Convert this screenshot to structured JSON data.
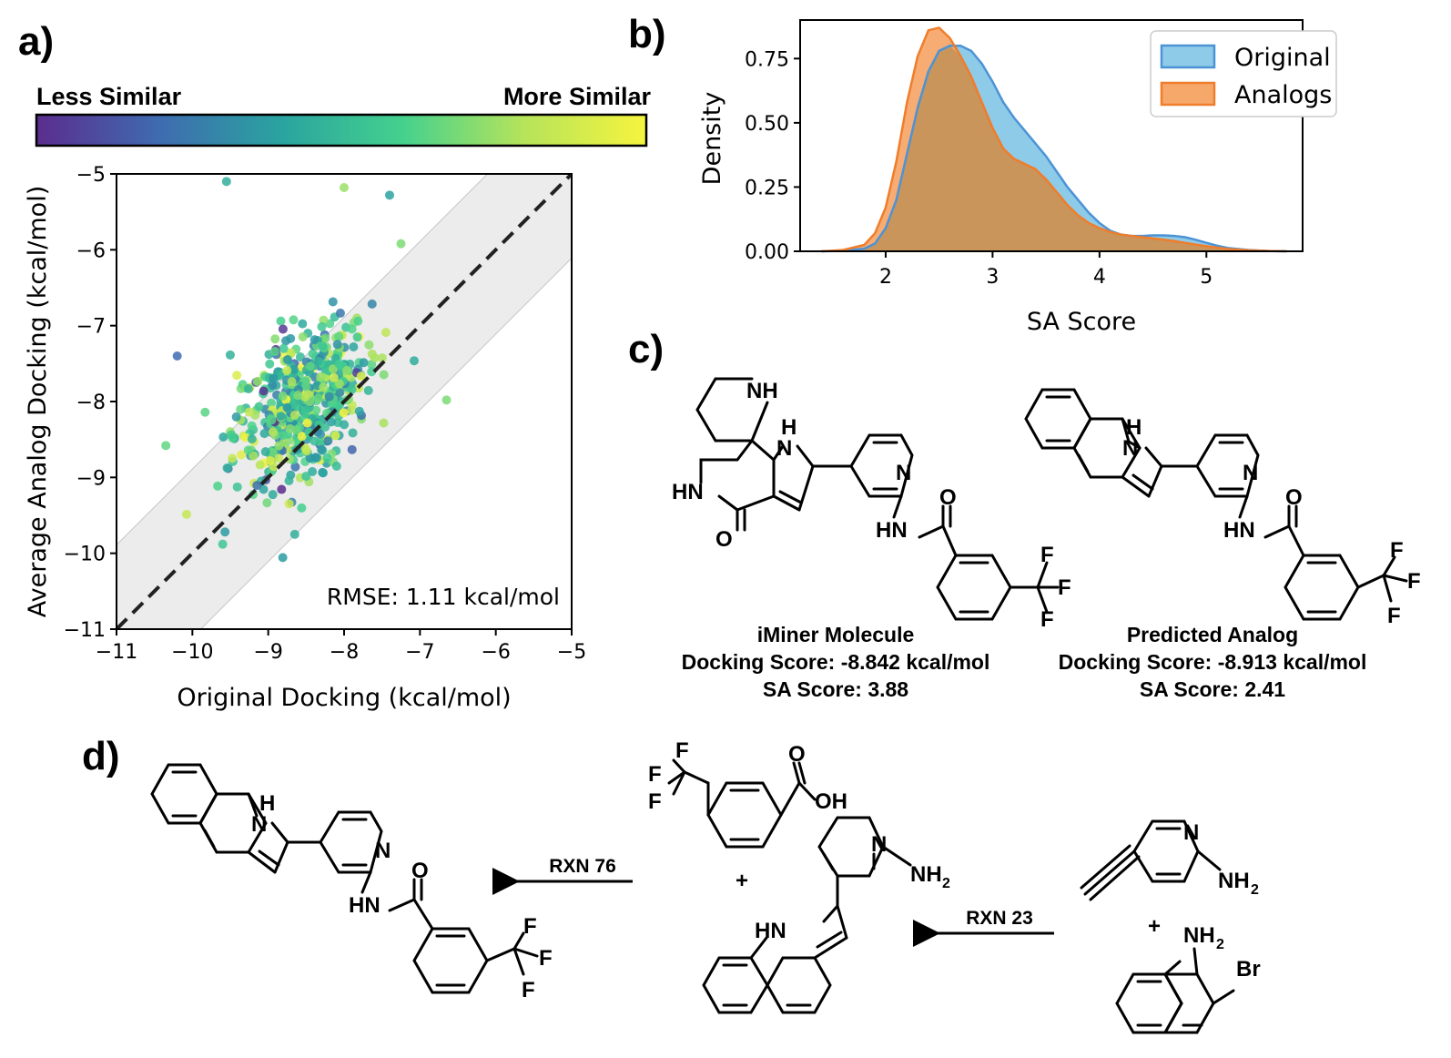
{
  "panel_labels": {
    "a": "a)",
    "b": "b)",
    "c": "c)",
    "d": "d)"
  },
  "colorbar": {
    "left_label": "Less Similar",
    "right_label": "More Similar",
    "colormap": [
      "#5b2d8e",
      "#3f6bb0",
      "#2aa3a0",
      "#44d18e",
      "#b6e45a",
      "#f6f43e"
    ]
  },
  "chart_data": [
    {
      "type": "scatter",
      "xlabel": "Original Docking (kcal/mol)",
      "ylabel": "Average Analog Docking (kcal/mol)",
      "xlim": [
        -11,
        -5
      ],
      "ylim": [
        -11,
        -5
      ],
      "xticks": [
        "−11",
        "−10",
        "−9",
        "−8",
        "−7",
        "−6",
        "−5"
      ],
      "yticks": [
        "−5",
        "−6",
        "−7",
        "−8",
        "−9",
        "−10",
        "−11"
      ],
      "annotation": "RMSE: 1.11 kcal/mol",
      "identity_line": true,
      "band_half_width": 1.11,
      "point_count": 520,
      "center": [
        -8.55,
        -8.0
      ],
      "notable_points": [
        {
          "x": -9.55,
          "y": -5.1
        },
        {
          "x": -8.0,
          "y": -5.18
        },
        {
          "x": -7.4,
          "y": -5.28
        },
        {
          "x": -7.25,
          "y": -5.92
        },
        {
          "x": -10.2,
          "y": -7.4
        },
        {
          "x": -6.65,
          "y": -7.98
        },
        {
          "x": -10.35,
          "y": -8.58
        },
        {
          "x": -9.6,
          "y": -9.88
        },
        {
          "x": -8.65,
          "y": -9.75
        }
      ],
      "grid": false
    },
    {
      "type": "area",
      "xlabel": "SA Score",
      "ylabel": "Density",
      "xlim": [
        1.2,
        5.9
      ],
      "ylim": [
        0,
        0.9
      ],
      "xticks": [
        "2",
        "3",
        "4",
        "5"
      ],
      "yticks": [
        "0.00",
        "0.25",
        "0.50",
        "0.75"
      ],
      "x": [
        1.4,
        1.6,
        1.8,
        1.9,
        2.0,
        2.1,
        2.2,
        2.3,
        2.4,
        2.5,
        2.6,
        2.7,
        2.8,
        2.9,
        3.0,
        3.1,
        3.2,
        3.3,
        3.4,
        3.5,
        3.6,
        3.7,
        3.8,
        3.9,
        4.0,
        4.1,
        4.2,
        4.3,
        4.4,
        4.5,
        4.6,
        4.7,
        4.8,
        4.9,
        5.0,
        5.1,
        5.2,
        5.4,
        5.6,
        5.75
      ],
      "series": [
        {
          "name": "Original",
          "color": "#8ecbe8",
          "edge": "#4c93d6",
          "values": [
            0.0,
            0.002,
            0.01,
            0.03,
            0.09,
            0.2,
            0.38,
            0.56,
            0.7,
            0.78,
            0.8,
            0.8,
            0.78,
            0.73,
            0.66,
            0.58,
            0.52,
            0.47,
            0.42,
            0.37,
            0.31,
            0.25,
            0.2,
            0.15,
            0.11,
            0.08,
            0.065,
            0.06,
            0.06,
            0.062,
            0.062,
            0.06,
            0.055,
            0.045,
            0.033,
            0.022,
            0.013,
            0.005,
            0.001,
            0.0
          ]
        },
        {
          "name": "Analogs",
          "color": "#f6a86b",
          "edge": "#ef7d2c",
          "values": [
            0.0,
            0.005,
            0.025,
            0.07,
            0.17,
            0.35,
            0.58,
            0.76,
            0.86,
            0.87,
            0.83,
            0.76,
            0.68,
            0.58,
            0.48,
            0.4,
            0.36,
            0.34,
            0.32,
            0.28,
            0.23,
            0.18,
            0.14,
            0.11,
            0.09,
            0.075,
            0.065,
            0.06,
            0.055,
            0.05,
            0.045,
            0.04,
            0.033,
            0.026,
            0.02,
            0.014,
            0.009,
            0.004,
            0.001,
            0.0
          ]
        }
      ],
      "overlap_color": "#c9955a",
      "legend": "top-right",
      "grid": false
    }
  ],
  "panel_c": {
    "left": {
      "nh": "NH",
      "h": "H",
      "n": "N",
      "hn": "HN",
      "o": "O",
      "n_pyr": "N",
      "o2": "O",
      "hn2": "HN",
      "f1": "F",
      "f2": "F",
      "f3": "F",
      "caption1": "iMiner Molecule",
      "caption2": "Docking Score: -8.842 kcal/mol",
      "caption3": "SA Score: 3.88"
    },
    "right": {
      "h": "H",
      "n": "N",
      "n_pyr": "N",
      "o": "O",
      "hn": "HN",
      "f1": "F",
      "f2": "F",
      "f3": "F",
      "caption1": "Predicted Analog",
      "caption2": "Docking Score: -8.913 kcal/mol",
      "caption3": "SA Score: 2.41"
    }
  },
  "panel_d": {
    "product": {
      "h": "H",
      "n": "N",
      "n_pyr": "N",
      "o": "O",
      "hn": "HN",
      "f1": "F",
      "f2": "F",
      "f3": "F"
    },
    "rxn1": "RXN 76",
    "rxn2": "RXN 23",
    "plus1": "+",
    "plus2": "+",
    "acid": {
      "f1": "F",
      "f2": "F",
      "f3": "F",
      "o": "O",
      "oh": "OH"
    },
    "amine": {
      "n": "N",
      "nh2": "NH",
      "nh2_sub": "2",
      "hn": "HN"
    },
    "alkyne": {
      "n": "N",
      "nh2": "NH",
      "nh2_sub": "2"
    },
    "naph": {
      "nh2": "NH",
      "nh2_sub": "2",
      "br": "Br"
    }
  }
}
